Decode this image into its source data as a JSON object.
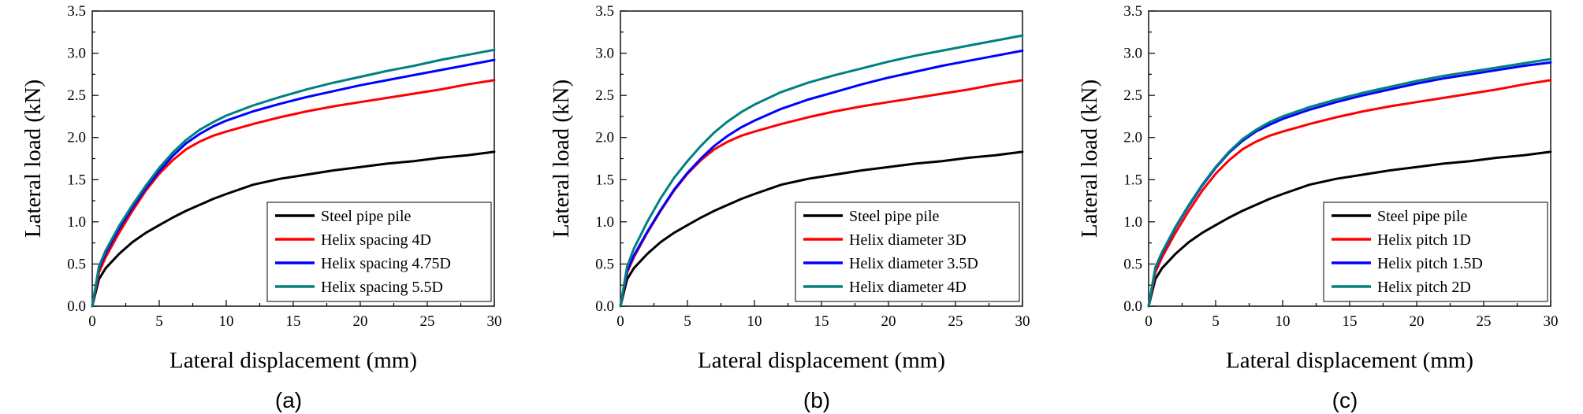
{
  "figure": {
    "colors": {
      "black": "#000000",
      "red": "#ff0000",
      "blue": "#0000ff",
      "teal": "#008080"
    }
  },
  "chart_data": [
    {
      "panel_label": "(a)",
      "type": "line",
      "xlabel": "Lateral displacement (mm)",
      "ylabel": "Lateral load (kN)",
      "xlim": [
        0,
        30
      ],
      "ylim": [
        0,
        3.5
      ],
      "xticks": [
        "0",
        "5",
        "10",
        "15",
        "20",
        "25",
        "30"
      ],
      "yticks": [
        "0.0",
        "0.5",
        "1.0",
        "1.5",
        "2.0",
        "2.5",
        "3.0",
        "3.5"
      ],
      "legend_position": "bottom-right",
      "grid": false,
      "x": [
        0,
        0.5,
        1,
        2,
        3,
        4,
        5,
        6,
        7,
        8,
        9,
        10,
        12,
        14,
        16,
        18,
        20,
        22,
        24,
        26,
        28,
        30
      ],
      "series": [
        {
          "name": "Steel pipe pile",
          "color": "#000000",
          "values": [
            0,
            0.32,
            0.45,
            0.62,
            0.76,
            0.87,
            0.96,
            1.05,
            1.13,
            1.2,
            1.27,
            1.33,
            1.44,
            1.51,
            1.56,
            1.61,
            1.65,
            1.69,
            1.72,
            1.76,
            1.79,
            1.83
          ]
        },
        {
          "name": "Helix spacing 4D",
          "color": "#ff0000",
          "values": [
            0,
            0.4,
            0.58,
            0.87,
            1.13,
            1.37,
            1.57,
            1.73,
            1.86,
            1.95,
            2.02,
            2.07,
            2.16,
            2.24,
            2.31,
            2.37,
            2.42,
            2.47,
            2.52,
            2.57,
            2.63,
            2.68
          ]
        },
        {
          "name": "Helix spacing 4.75D",
          "color": "#0000ff",
          "values": [
            0,
            0.45,
            0.63,
            0.92,
            1.17,
            1.4,
            1.6,
            1.78,
            1.93,
            2.04,
            2.13,
            2.2,
            2.31,
            2.4,
            2.48,
            2.55,
            2.62,
            2.68,
            2.74,
            2.8,
            2.86,
            2.92
          ]
        },
        {
          "name": "Helix spacing 5.5D",
          "color": "#008080",
          "values": [
            0,
            0.47,
            0.66,
            0.95,
            1.2,
            1.43,
            1.64,
            1.82,
            1.97,
            2.09,
            2.18,
            2.26,
            2.38,
            2.48,
            2.57,
            2.65,
            2.72,
            2.79,
            2.85,
            2.92,
            2.98,
            3.04
          ]
        }
      ]
    },
    {
      "panel_label": "(b)",
      "type": "line",
      "xlabel": "Lateral displacement (mm)",
      "ylabel": "Lateral load (kN)",
      "xlim": [
        0,
        30
      ],
      "ylim": [
        0,
        3.5
      ],
      "xticks": [
        "0",
        "5",
        "10",
        "15",
        "20",
        "25",
        "30"
      ],
      "yticks": [
        "0.0",
        "0.5",
        "1.0",
        "1.5",
        "2.0",
        "2.5",
        "3.0",
        "3.5"
      ],
      "legend_position": "bottom-right",
      "grid": false,
      "x": [
        0,
        0.5,
        1,
        2,
        3,
        4,
        5,
        6,
        7,
        8,
        9,
        10,
        12,
        14,
        16,
        18,
        20,
        22,
        24,
        26,
        28,
        30
      ],
      "series": [
        {
          "name": "Steel pipe pile",
          "color": "#000000",
          "values": [
            0,
            0.32,
            0.45,
            0.62,
            0.76,
            0.87,
            0.96,
            1.05,
            1.13,
            1.2,
            1.27,
            1.33,
            1.44,
            1.51,
            1.56,
            1.61,
            1.65,
            1.69,
            1.72,
            1.76,
            1.79,
            1.83
          ]
        },
        {
          "name": "Helix diameter 3D",
          "color": "#ff0000",
          "values": [
            0,
            0.4,
            0.58,
            0.87,
            1.13,
            1.37,
            1.57,
            1.73,
            1.86,
            1.95,
            2.02,
            2.07,
            2.16,
            2.24,
            2.31,
            2.37,
            2.42,
            2.47,
            2.52,
            2.57,
            2.63,
            2.68
          ]
        },
        {
          "name": "Helix diameter 3.5D",
          "color": "#0000ff",
          "values": [
            0,
            0.42,
            0.6,
            0.88,
            1.14,
            1.38,
            1.58,
            1.75,
            1.9,
            2.02,
            2.12,
            2.2,
            2.34,
            2.45,
            2.54,
            2.63,
            2.71,
            2.78,
            2.85,
            2.91,
            2.97,
            3.03
          ]
        },
        {
          "name": "Helix diameter 4D",
          "color": "#008080",
          "values": [
            0,
            0.47,
            0.68,
            1.0,
            1.28,
            1.52,
            1.72,
            1.9,
            2.06,
            2.19,
            2.3,
            2.39,
            2.54,
            2.65,
            2.74,
            2.82,
            2.9,
            2.97,
            3.03,
            3.09,
            3.15,
            3.21
          ]
        }
      ]
    },
    {
      "panel_label": "(c)",
      "type": "line",
      "xlabel": "Lateral displacement (mm)",
      "ylabel": "Lateral load (kN)",
      "xlim": [
        0,
        30
      ],
      "ylim": [
        0,
        3.5
      ],
      "xticks": [
        "0",
        "5",
        "10",
        "15",
        "20",
        "25",
        "30"
      ],
      "yticks": [
        "0.0",
        "0.5",
        "1.0",
        "1.5",
        "2.0",
        "2.5",
        "3.0",
        "3.5"
      ],
      "legend_position": "bottom-right",
      "grid": false,
      "x": [
        0,
        0.5,
        1,
        2,
        3,
        4,
        5,
        6,
        7,
        8,
        9,
        10,
        12,
        14,
        16,
        18,
        20,
        22,
        24,
        26,
        28,
        30
      ],
      "series": [
        {
          "name": "Steel pipe pile",
          "color": "#000000",
          "values": [
            0,
            0.32,
            0.45,
            0.62,
            0.76,
            0.87,
            0.96,
            1.05,
            1.13,
            1.2,
            1.27,
            1.33,
            1.44,
            1.51,
            1.56,
            1.61,
            1.65,
            1.69,
            1.72,
            1.76,
            1.79,
            1.83
          ]
        },
        {
          "name": "Helix pitch 1D",
          "color": "#ff0000",
          "values": [
            0,
            0.4,
            0.58,
            0.87,
            1.13,
            1.37,
            1.57,
            1.73,
            1.86,
            1.95,
            2.02,
            2.07,
            2.16,
            2.24,
            2.31,
            2.37,
            2.42,
            2.47,
            2.52,
            2.57,
            2.63,
            2.68
          ]
        },
        {
          "name": "Helix pitch 1.5D",
          "color": "#0000ff",
          "values": [
            0,
            0.45,
            0.63,
            0.93,
            1.19,
            1.43,
            1.64,
            1.82,
            1.96,
            2.07,
            2.15,
            2.22,
            2.33,
            2.42,
            2.5,
            2.57,
            2.64,
            2.7,
            2.75,
            2.8,
            2.85,
            2.89
          ]
        },
        {
          "name": "Helix pitch 2D",
          "color": "#008080",
          "values": [
            0,
            0.46,
            0.64,
            0.94,
            1.2,
            1.44,
            1.65,
            1.83,
            1.98,
            2.09,
            2.18,
            2.25,
            2.36,
            2.45,
            2.53,
            2.6,
            2.67,
            2.73,
            2.78,
            2.83,
            2.88,
            2.93
          ]
        }
      ]
    }
  ]
}
